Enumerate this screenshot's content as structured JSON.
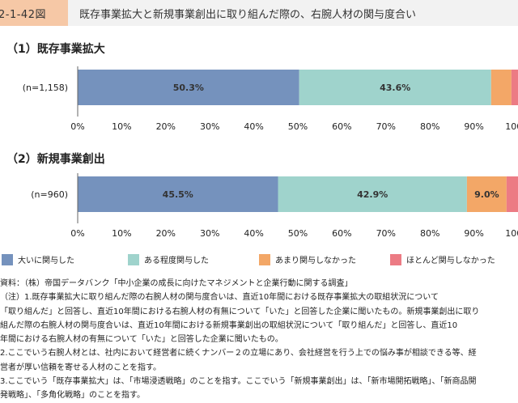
{
  "header": {
    "figure_number": "2-1-42図",
    "title": "既存事業拡大と新規事業創出に取り組んだ際の、右腕人材の関与度合い"
  },
  "colors": {
    "header_number_bg": "#f6c8a6",
    "header_title_bg": "#f2f2f2"
  },
  "chart_data": [
    {
      "type": "bar",
      "orientation": "horizontal",
      "stacked": true,
      "title": "（1）既存事業拡大",
      "categories": [
        "(n=1,158)"
      ],
      "xlim": [
        0,
        100
      ],
      "x_ticks": [
        "0%",
        "10%",
        "20%",
        "30%",
        "40%",
        "50%",
        "60%",
        "70%",
        "80%",
        "90%",
        "100%"
      ],
      "series": [
        {
          "name": "大いに関与した",
          "values": [
            50.3
          ],
          "label": "50.3%",
          "color": "#7592bd"
        },
        {
          "name": "ある程度関与した",
          "values": [
            43.6
          ],
          "label": "43.6%",
          "color": "#9fd3cc"
        },
        {
          "name": "あまり関与しなかった",
          "values": [
            4.6
          ],
          "label": "",
          "color": "#f3a767"
        },
        {
          "name": "ほとんど関与しなかった",
          "values": [
            1.5
          ],
          "label": "",
          "color": "#ec7b84"
        }
      ]
    },
    {
      "type": "bar",
      "orientation": "horizontal",
      "stacked": true,
      "title": "（2）新規事業創出",
      "categories": [
        "(n=960)"
      ],
      "xlim": [
        0,
        100
      ],
      "x_ticks": [
        "0%",
        "10%",
        "20%",
        "30%",
        "40%",
        "50%",
        "60%",
        "70%",
        "80%",
        "90%",
        "100%"
      ],
      "series": [
        {
          "name": "大いに関与した",
          "values": [
            45.5
          ],
          "label": "45.5%",
          "color": "#7592bd"
        },
        {
          "name": "ある程度関与した",
          "values": [
            42.9
          ],
          "label": "42.9%",
          "color": "#9fd3cc"
        },
        {
          "name": "あまり関与しなかった",
          "values": [
            9.0
          ],
          "label": "9.0%",
          "color": "#f3a767"
        },
        {
          "name": "ほとんど関与しなかった",
          "values": [
            2.6
          ],
          "label": "",
          "color": "#ec7b84"
        }
      ]
    }
  ],
  "legend": [
    {
      "label": "大いに関与した",
      "color": "#7592bd"
    },
    {
      "label": "ある程度関与した",
      "color": "#9fd3cc"
    },
    {
      "label": "あまり関与しなかった",
      "color": "#f3a767"
    },
    {
      "label": "ほとんど関与しなかった",
      "color": "#ec7b84"
    }
  ],
  "notes": [
    "資料：（株）帝国データバンク「中小企業の成長に向けたマネジメントと企業行動に関する調査」",
    "（注）1.既存事業拡大に取り組んだ際の右腕人材の関与度合いは、直近10年間における既存事業拡大の取組状況について",
    "「取り組んだ」と回答し、直近10年間における右腕人材の有無について「いた」と回答した企業に聞いたもの。新規事業創出に取り",
    "組んだ際の右腕人材の関与度合いは、直近10年間における新規事業創出の取組状況について「取り組んだ」と回答し、直近10",
    "年間における右腕人材の有無について「いた」と回答した企業に聞いたもの。",
    "2.ここでいう右腕人材とは、社内において経営者に続くナンバー２の立場にあり、会社経営を行う上での悩み事が相談できる等、経",
    "営者が厚い信頼を寄せる人材のことを指す。",
    "3.ここでいう「既存事業拡大」は、「市場浸透戦略」のことを指す。ここでいう「新規事業創出」は、「新市場開拓戦略」、「新商品開",
    "発戦略」、「多角化戦略」のことを指す。"
  ]
}
